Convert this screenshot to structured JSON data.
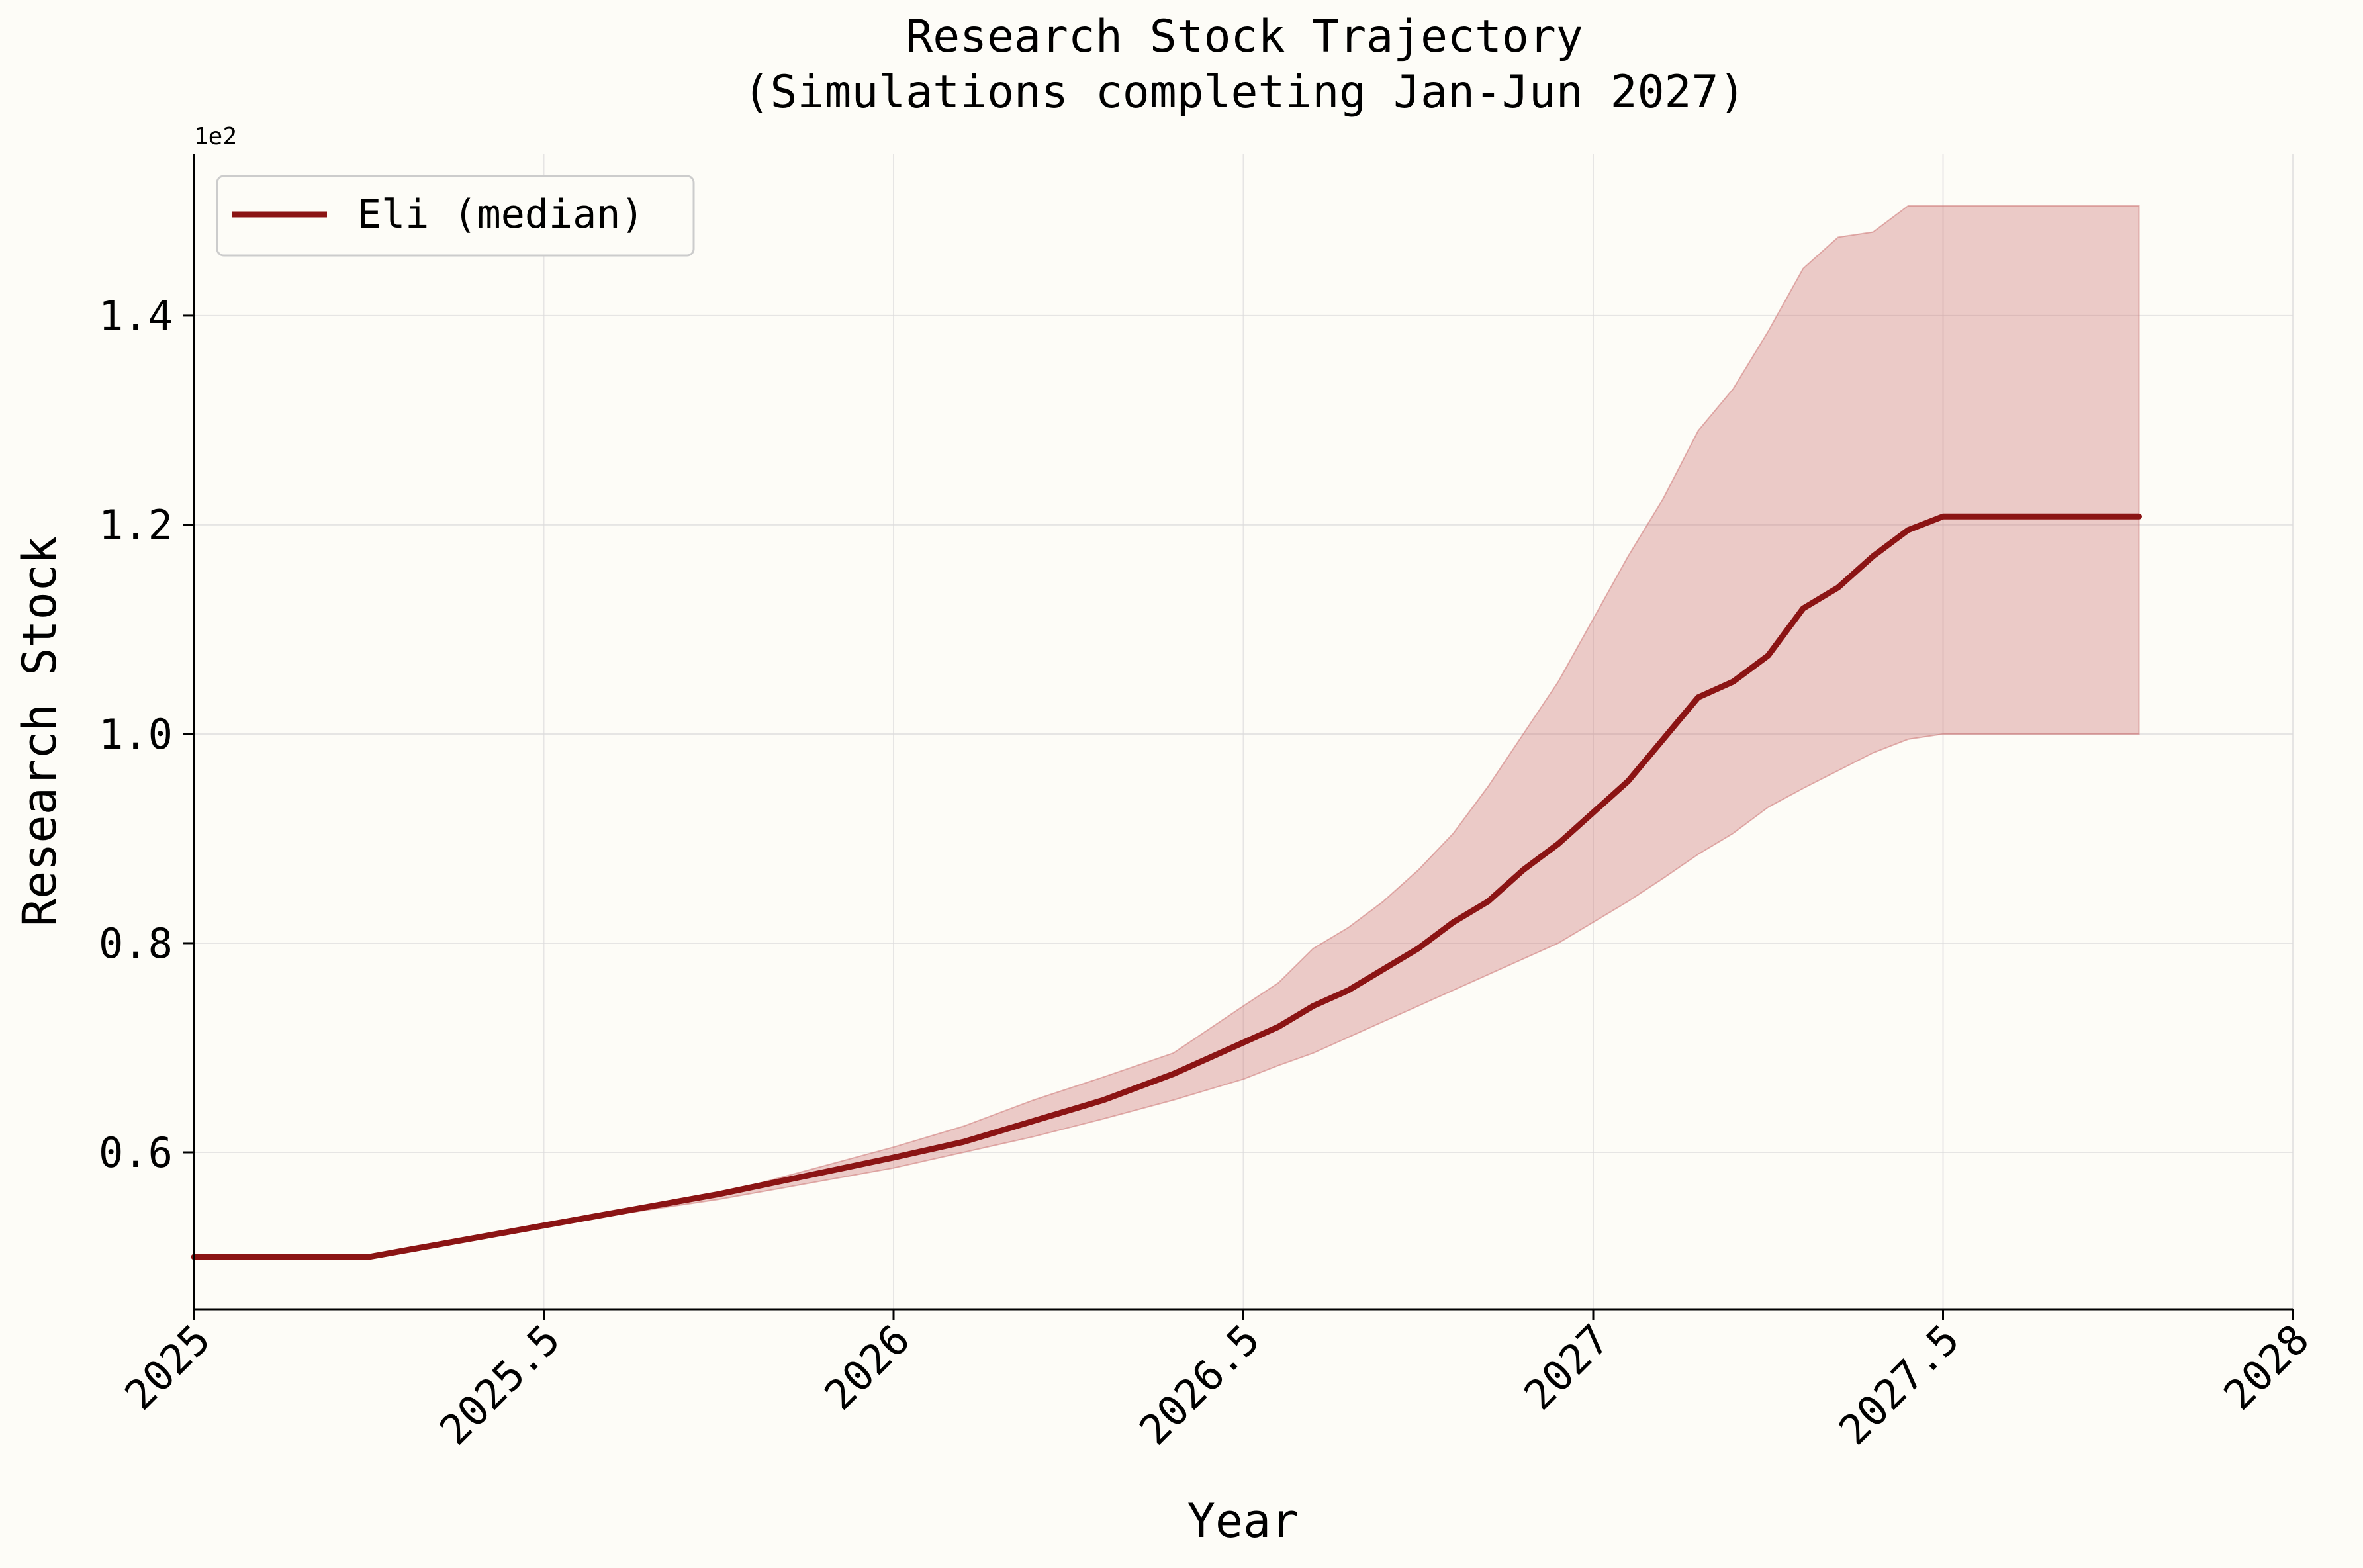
{
  "chart_data": {
    "type": "line",
    "title": "Research Stock Trajectory",
    "subtitle": "(Simulations completing Jan-Jun 2027)",
    "xlabel": "Year",
    "ylabel": "Research Stock",
    "y_offset_label": "1e2",
    "xlim": [
      2025,
      2028
    ],
    "ylim": [
      0.45,
      1.555
    ],
    "x_ticks": [
      2025,
      2025.5,
      2026,
      2026.5,
      2027,
      2027.5,
      2028
    ],
    "x_tick_labels": [
      "2025",
      "2025.5",
      "2026",
      "2026.5",
      "2027",
      "2027.5",
      "2028"
    ],
    "y_ticks": [
      0.6,
      0.8,
      1.0,
      1.2,
      1.4
    ],
    "y_tick_labels": [
      "0.6",
      "0.8",
      "1.0",
      "1.2",
      "1.4"
    ],
    "grid": true,
    "legend_position": "top-left",
    "colors": {
      "line": "#8b1414",
      "band": "#c96c6c",
      "background": "#fdfcf7"
    },
    "series": [
      {
        "name": "Eli (median)",
        "kind": "line",
        "x": [
          2025.0,
          2025.25,
          2025.5,
          2025.75,
          2026.0,
          2026.1,
          2026.2,
          2026.3,
          2026.4,
          2026.5,
          2026.55,
          2026.6,
          2026.65,
          2026.7,
          2026.75,
          2026.8,
          2026.85,
          2026.9,
          2026.95,
          2027.0,
          2027.05,
          2027.1,
          2027.15,
          2027.2,
          2027.25,
          2027.3,
          2027.35,
          2027.4,
          2027.45,
          2027.5,
          2027.6,
          2027.7,
          2027.78
        ],
        "y": [
          0.5,
          0.5,
          0.53,
          0.56,
          0.595,
          0.61,
          0.63,
          0.65,
          0.675,
          0.705,
          0.72,
          0.74,
          0.755,
          0.775,
          0.795,
          0.82,
          0.84,
          0.87,
          0.895,
          0.925,
          0.955,
          0.995,
          1.035,
          1.05,
          1.075,
          1.12,
          1.14,
          1.17,
          1.195,
          1.208,
          1.208,
          1.208,
          1.208
        ]
      },
      {
        "name": "",
        "kind": "band",
        "x": [
          2025.0,
          2025.25,
          2025.5,
          2025.75,
          2026.0,
          2026.1,
          2026.2,
          2026.3,
          2026.4,
          2026.5,
          2026.55,
          2026.6,
          2026.65,
          2026.7,
          2026.75,
          2026.8,
          2026.85,
          2026.9,
          2026.95,
          2027.0,
          2027.05,
          2027.1,
          2027.15,
          2027.2,
          2027.25,
          2027.3,
          2027.35,
          2027.4,
          2027.45,
          2027.5,
          2027.6,
          2027.7,
          2027.78
        ],
        "lower": [
          0.5,
          0.5,
          0.53,
          0.555,
          0.585,
          0.6,
          0.615,
          0.632,
          0.65,
          0.67,
          0.683,
          0.695,
          0.71,
          0.725,
          0.74,
          0.755,
          0.77,
          0.785,
          0.8,
          0.82,
          0.84,
          0.862,
          0.885,
          0.905,
          0.93,
          0.948,
          0.965,
          0.982,
          0.995,
          1.0,
          1.0,
          1.0,
          1.0
        ],
        "upper": [
          0.5,
          0.5,
          0.53,
          0.56,
          0.605,
          0.625,
          0.65,
          0.672,
          0.695,
          0.74,
          0.762,
          0.795,
          0.815,
          0.84,
          0.87,
          0.905,
          0.95,
          1.0,
          1.05,
          1.11,
          1.17,
          1.225,
          1.29,
          1.33,
          1.385,
          1.445,
          1.475,
          1.48,
          1.505,
          1.505,
          1.505,
          1.505,
          1.505
        ]
      }
    ]
  }
}
